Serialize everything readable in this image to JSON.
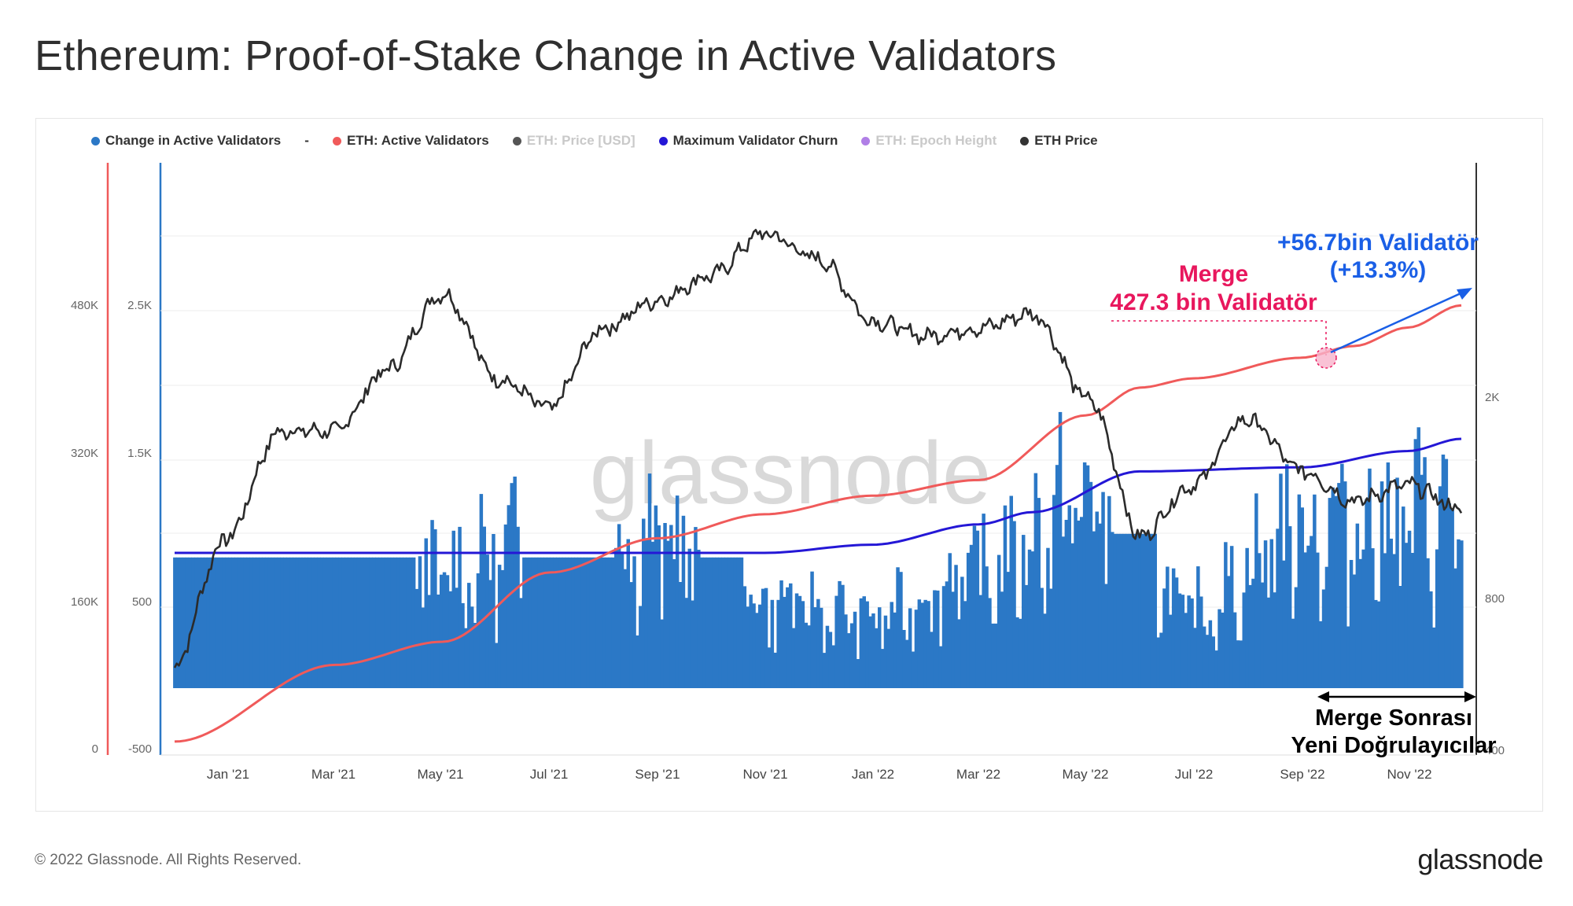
{
  "title": "Ethereum: Proof-of-Stake Change in Active Validators",
  "footer": {
    "copyright": "© 2022 Glassnode. All Rights Reserved.",
    "logo": "glassnode"
  },
  "watermark": "glassnode",
  "legend": [
    {
      "label": "Change in Active Validators",
      "color": "#2b78c6",
      "muted": false
    },
    {
      "label": "-",
      "separator": true
    },
    {
      "label": "ETH: Active Validators",
      "color": "#f05a5a",
      "muted": false
    },
    {
      "label": "ETH: Price [USD]",
      "color": "#555555",
      "muted": true
    },
    {
      "label": "Maximum Validator Churn",
      "color": "#2417d6",
      "muted": false
    },
    {
      "label": "ETH: Epoch Height",
      "color": "#b07fe6",
      "muted": true
    },
    {
      "label": "ETH Price",
      "color": "#333333",
      "muted": false
    }
  ],
  "annotations": {
    "merge_line1": "Merge",
    "merge_line2": "427.3 bin Validatör",
    "growth_line1": "+56.7bin Validatör",
    "growth_line2": "(+13.3%)",
    "post_merge_line1": "Merge Sonrası",
    "post_merge_line2": "Yeni Doğrulayıcılar"
  },
  "colors": {
    "change_bars": "#2b78c6",
    "active_validators": "#f05a5a",
    "max_churn": "#2417d6",
    "eth_price": "#2b2b2b",
    "merge_text": "#e8175d",
    "growth_text": "#1a5fe6",
    "left_axis_line_red": "#f05a5a",
    "left_axis_line_blue": "#2b78c6"
  },
  "chart_data": {
    "type": "line",
    "x_ticks": [
      "Jan '21",
      "Mar '21",
      "May '21",
      "Jul '21",
      "Sep '21",
      "Nov '21",
      "Jan '22",
      "Mar '22",
      "May '22",
      "Jul '22",
      "Sep '22",
      "Nov '22"
    ],
    "axes": {
      "active_validators_axis": {
        "ticks": [
          "0",
          "160K",
          "320K",
          "480K"
        ],
        "range": [
          0,
          480000
        ]
      },
      "change_axis": {
        "ticks": [
          "-500",
          "500",
          "1.5K",
          "2.5K"
        ],
        "range": [
          -500,
          2500
        ]
      },
      "price_axis": {
        "ticks": [
          "400",
          "800",
          "2K"
        ],
        "scale": "log"
      }
    },
    "series": [
      {
        "name": "ETH: Active Validators",
        "x": [
          "Dec '20",
          "Mar '21",
          "May '21",
          "Jul '21",
          "Sep '21",
          "Nov '21",
          "Jan '22",
          "Mar '22",
          "May '22",
          "Jun '22",
          "Jul '22",
          "Sep '22",
          "Oct '22",
          "Nov '22",
          "Dec '22"
        ],
        "values": [
          12000,
          95000,
          120000,
          195000,
          232000,
          258000,
          278000,
          295000,
          365000,
          395000,
          405000,
          427300,
          440000,
          460000,
          484000
        ]
      },
      {
        "name": "Maximum Validator Churn",
        "x": [
          "Dec '20",
          "Nov '21",
          "Jan '22",
          "Mar '22",
          "Apr '22",
          "Jun '22",
          "Sep '22",
          "Nov '22",
          "Dec '22"
        ],
        "values": [
          4,
          4,
          4.2,
          4.7,
          5.0,
          6.0,
          6.1,
          6.5,
          6.8
        ]
      },
      {
        "name": "ETH Price",
        "x": [
          "Dec '20",
          "Jan '21",
          "Feb '21",
          "Mar '21",
          "Apr '21",
          "May '21",
          "Jun '21",
          "Jul '21",
          "Aug '21",
          "Sep '21",
          "Oct '21",
          "Nov '21",
          "Dec '21",
          "Jan '22",
          "Feb '22",
          "Mar '22",
          "Apr '22",
          "May '22",
          "Jun '22",
          "Jul '22",
          "Aug '22",
          "Sep '22",
          "Oct '22",
          "Nov '22",
          "Dec '22"
        ],
        "values": [
          600,
          1100,
          1800,
          1800,
          2400,
          3400,
          2300,
          2000,
          2900,
          3300,
          3700,
          4500,
          4000,
          3000,
          2800,
          2900,
          3100,
          2100,
          1100,
          1400,
          1900,
          1500,
          1300,
          1400,
          1250
        ]
      },
      {
        "name": "Change in Active Validators",
        "x": [
          "Dec '20",
          "Mar '21",
          "May '21",
          "Jul '21",
          "Sep '21",
          "Nov '21",
          "Jan '22",
          "Mar '22",
          "May '22",
          "Jul '22",
          "Sep '22",
          "Nov '22"
        ],
        "values": [
          900,
          400,
          700,
          900,
          900,
          500,
          400,
          700,
          1150,
          450,
          1000,
          1050
        ]
      }
    ]
  }
}
